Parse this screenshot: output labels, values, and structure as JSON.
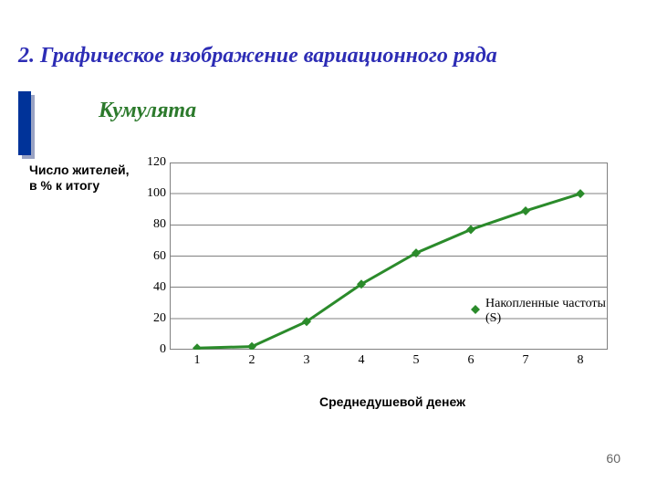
{
  "heading": "2. Графическое изображение вариационного ряда",
  "subheading": "Кумулята",
  "yaxis_title": "Число жителей, в % к итогу",
  "xaxis_title": "Среднедушевой денеж",
  "page_number": "60",
  "chart": {
    "type": "line",
    "background_color": "#ffffff",
    "grid_color": "#808080",
    "border_color": "#808080",
    "ylim": [
      0,
      120
    ],
    "ytick_step": 20,
    "yticks": [
      0,
      20,
      40,
      60,
      80,
      100,
      120
    ],
    "x_categories": [
      "1",
      "2",
      "3",
      "4",
      "5",
      "6",
      "7",
      "8"
    ],
    "series": {
      "name": "Накопленные частоты (S)",
      "color": "#2b8b2b",
      "line_width": 3,
      "marker": "diamond",
      "marker_size": 10,
      "values": [
        1,
        2,
        18,
        42,
        62,
        77,
        89,
        100
      ]
    },
    "legend": {
      "label1": "Накопленные частоты",
      "label2": "(S)",
      "marker_color": "#2b8b2b"
    },
    "tick_fontsize": 14,
    "tick_font": "Times New Roman"
  },
  "colors": {
    "heading": "#2d2db5",
    "subheading": "#2c7a2c",
    "bullet_bar": "#003399",
    "bullet_shadow": "#9aa3c3",
    "page_number": "#666666"
  }
}
